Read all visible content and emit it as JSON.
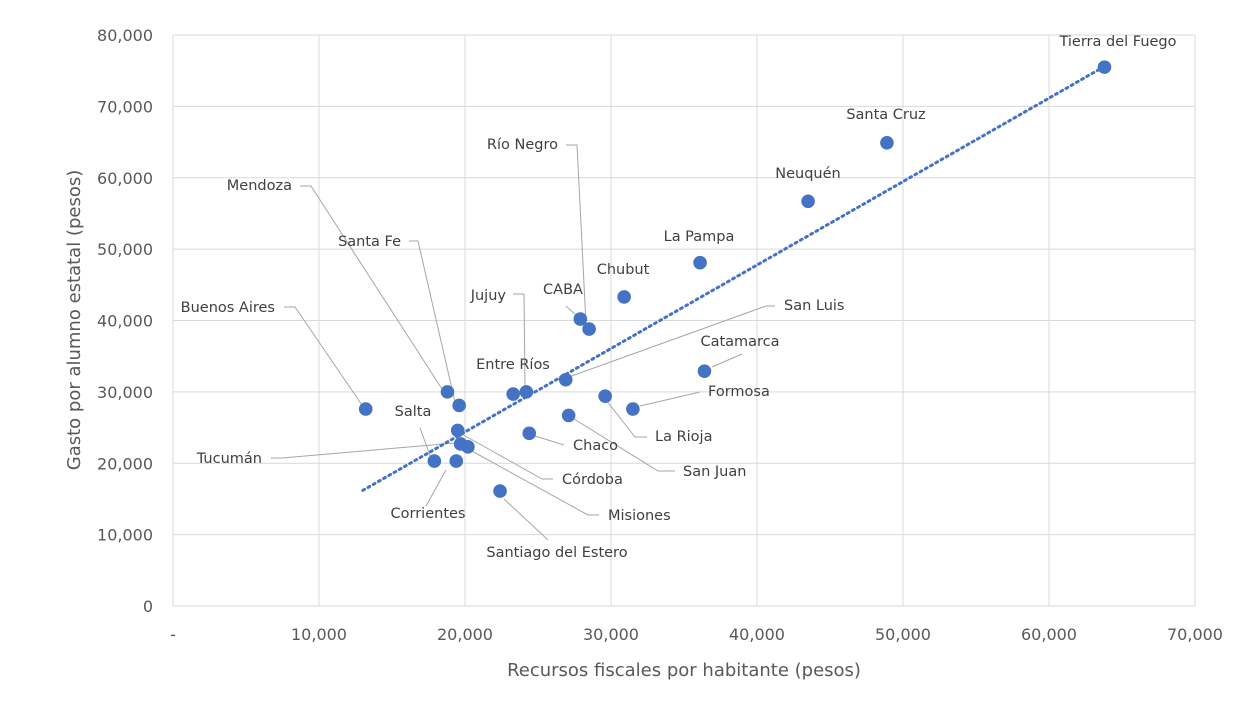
{
  "chart_data": {
    "type": "scatter",
    "title": "",
    "xlabel": "Recursos fiscales por habitante (pesos)",
    "ylabel": "Gasto por alumno estatal (pesos)",
    "xlim": [
      0,
      70000
    ],
    "ylim": [
      0,
      80000
    ],
    "x_ticks": [
      "-",
      "10,000",
      "20,000",
      "30,000",
      "40,000",
      "50,000",
      "60,000",
      "70,000"
    ],
    "y_ticks": [
      "0",
      "10,000",
      "20,000",
      "30,000",
      "40,000",
      "50,000",
      "60,000",
      "70,000",
      "80,000"
    ],
    "grid": true,
    "marker_color": "#4472C4",
    "trendline": {
      "style": "dotted linear",
      "color": "#4472C4",
      "from": [
        13000,
        16200
      ],
      "to": [
        63800,
        75600
      ]
    },
    "points": [
      {
        "label": "Tierra del Fuego",
        "x": 63800,
        "y": 75500
      },
      {
        "label": "Santa Cruz",
        "x": 48900,
        "y": 64900
      },
      {
        "label": "Neuquén",
        "x": 43500,
        "y": 56700
      },
      {
        "label": "La Pampa",
        "x": 36100,
        "y": 48100
      },
      {
        "label": "Chubut",
        "x": 30900,
        "y": 43300
      },
      {
        "label": "CABA",
        "x": 27900,
        "y": 40200
      },
      {
        "label": "Río Negro",
        "x": 28500,
        "y": 38800
      },
      {
        "label": "Jujuy",
        "x": 24200,
        "y": 30000
      },
      {
        "label": "Entre Ríos",
        "x": 23300,
        "y": 29700
      },
      {
        "label": "San Luis",
        "x": 26900,
        "y": 31700
      },
      {
        "label": "Catamarca",
        "x": 36400,
        "y": 32900
      },
      {
        "label": "Formosa",
        "x": 31500,
        "y": 27600
      },
      {
        "label": "La Rioja",
        "x": 29600,
        "y": 29400
      },
      {
        "label": "San Juan",
        "x": 27100,
        "y": 26700
      },
      {
        "label": "Chaco",
        "x": 24400,
        "y": 24200
      },
      {
        "label": "Buenos Aires",
        "x": 13200,
        "y": 27600
      },
      {
        "label": "Mendoza",
        "x": 18800,
        "y": 30000
      },
      {
        "label": "Santa Fe",
        "x": 19600,
        "y": 28100
      },
      {
        "label": "Salta",
        "x": 17900,
        "y": 20300
      },
      {
        "label": "Córdoba",
        "x": 19500,
        "y": 24600
      },
      {
        "label": "Tucumán",
        "x": 19700,
        "y": 22700
      },
      {
        "label": "Corrientes",
        "x": 19400,
        "y": 20300
      },
      {
        "label": "Misiones",
        "x": 20200,
        "y": 22300
      },
      {
        "label": "Santiago del Estero",
        "x": 22400,
        "y": 16100
      }
    ]
  }
}
